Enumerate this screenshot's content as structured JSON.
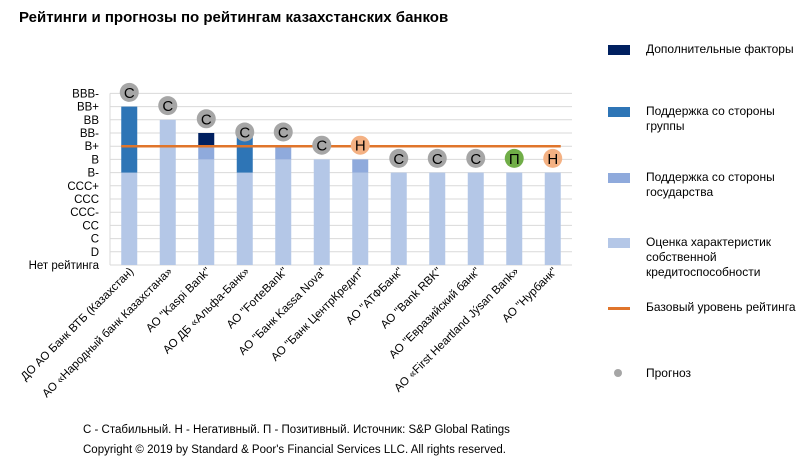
{
  "title": "Рейтинги и прогнозы по рейтингам казахстанских банков",
  "chart_data": {
    "type": "bar",
    "stacked": true,
    "y_scale": [
      "Нет рейтинга",
      "D",
      "C",
      "CC",
      "CCC-",
      "CCC",
      "CCC+",
      "B-",
      "B",
      "B+",
      "BB-",
      "BB",
      "BB+",
      "BBB-"
    ],
    "categories": [
      "ДО АО Банк ВТБ (Казахстан)",
      "АО «Народный банк Казахстана»",
      "АО \"Kaspi Bank\"",
      "АО ДБ «Альфа-Банк»",
      "АО \"ForteBank\"",
      "АО \"Банк Kassa Nova\"",
      "АО \"Банк ЦентрКредит\"",
      "АО \"АТФБанк\"",
      "АО \"Bank RBK\"",
      "АО \"Евразийский банк\"",
      "АО «First Heartland Jýsan Bank»",
      "АО \"Нурбанк\""
    ],
    "series": [
      {
        "name": "Оценка характеристик собственной кредитоспособности",
        "color": "#B4C7E7",
        "values": [
          "B-",
          "BB",
          "B",
          "B-",
          "B",
          "B",
          "B-",
          "B-",
          "B-",
          "B-",
          "B-",
          "B-"
        ]
      },
      {
        "name": "Поддержка со стороны государства",
        "color": "#8FAADC",
        "values": [
          null,
          null,
          "B+",
          null,
          "B+",
          null,
          "B",
          null,
          null,
          null,
          null,
          null
        ]
      },
      {
        "name": "Поддержка со стороны группы",
        "color": "#2E75B6",
        "values": [
          "BB+",
          null,
          null,
          "BB-",
          null,
          null,
          null,
          null,
          null,
          null,
          null,
          null
        ]
      },
      {
        "name": "Дополнительные факторы",
        "color": "#002060",
        "values": [
          null,
          null,
          "BB-",
          null,
          null,
          null,
          null,
          null,
          null,
          null,
          null,
          null
        ]
      }
    ],
    "outlook": [
      "С",
      "С",
      "С",
      "С",
      "С",
      "С",
      "Н",
      "С",
      "С",
      "С",
      "П",
      "Н"
    ],
    "outlook_level": [
      "BBB-",
      "BB+",
      "BB",
      "BB-",
      "BB-",
      "B+",
      "B+",
      "B",
      "B",
      "B",
      "B",
      "B"
    ],
    "baseline": {
      "name": "Базовый уровень рейтинга",
      "value": "B+",
      "color": "#E0752B"
    },
    "outlook_legend": "Прогноз",
    "outlook_colors": {
      "С": "#A6A6A6",
      "Н": "#F4B183",
      "П": "#70AD47"
    },
    "grid": true
  },
  "legend_items": [
    {
      "kind": "swatch",
      "color": "#002060",
      "label": "Дополнительные факторы"
    },
    {
      "kind": "swatch",
      "color": "#2E75B6",
      "label": "Поддержка со стороны группы"
    },
    {
      "kind": "swatch",
      "color": "#8FAADC",
      "label": "Поддержка со стороны государства"
    },
    {
      "kind": "swatch",
      "color": "#B4C7E7",
      "label": "Оценка характеристик собственной кредитоспособности"
    },
    {
      "kind": "line",
      "color": "#E0752B",
      "label": "Базовый уровень рейтинга"
    },
    {
      "kind": "dot",
      "color": "#A6A6A6",
      "label": "Прогноз"
    }
  ],
  "footer": {
    "line1": "С - Стабильный. Н - Негативный. П - Позитивный. Источник: S&P Global Ratings",
    "line2": "Copyright © 2019 by Standard & Poor's Financial Services LLC. All rights reserved."
  }
}
